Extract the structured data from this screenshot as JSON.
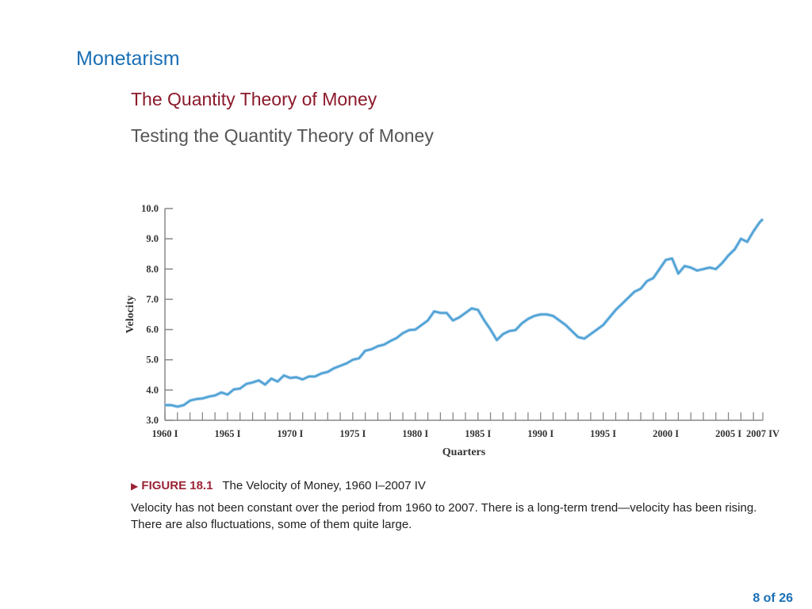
{
  "slide": {
    "section_title": "Monetarism",
    "subtitle": "The Quantity Theory of Money",
    "subsubtitle": "Testing the Quantity Theory of Money",
    "figure_marker": "▶",
    "figure_label": "FIGURE 18.1",
    "figure_title": "The Velocity of Money, 1960 I–2007 IV",
    "figure_description": "Velocity has not been constant over the period from 1960 to 2007. There is a long-term trend—velocity has been rising. There are also fluctuations, some of them quite large.",
    "page_number": "8 of 26"
  },
  "chart_data": {
    "type": "line",
    "title": "",
    "xlabel": "Quarters",
    "ylabel": "Velocity",
    "ylim": [
      3.0,
      10.0
    ],
    "xlim": [
      1960.0,
      2007.75
    ],
    "y_ticks": [
      "3.0",
      "4.0",
      "5.0",
      "6.0",
      "7.0",
      "8.0",
      "9.0",
      "10.0"
    ],
    "x_tick_labels": [
      {
        "x": 1960,
        "label": "1960 I"
      },
      {
        "x": 1965,
        "label": "1965 I"
      },
      {
        "x": 1970,
        "label": "1970 I"
      },
      {
        "x": 1975,
        "label": "1975 I"
      },
      {
        "x": 1980,
        "label": "1980 I"
      },
      {
        "x": 1985,
        "label": "1985 I"
      },
      {
        "x": 1990,
        "label": "1990 I"
      },
      {
        "x": 1995,
        "label": "1995 I"
      },
      {
        "x": 2000,
        "label": "2000 I"
      },
      {
        "x": 2005,
        "label": "2005 I"
      },
      {
        "x": 2007.75,
        "label": "2007 IV"
      }
    ],
    "line_color": "#4a9fd4",
    "series": [
      {
        "x": [
          1960.0,
          1960.5,
          1961.0,
          1961.5,
          1962.0,
          1962.5,
          1963.0,
          1963.5,
          1964.0,
          1964.5,
          1965.0,
          1965.5,
          1966.0,
          1966.5,
          1967.0,
          1967.5,
          1968.0,
          1968.5,
          1969.0,
          1969.5,
          1970.0,
          1970.5,
          1971.0,
          1971.5,
          1972.0,
          1972.5,
          1973.0,
          1973.5,
          1974.0,
          1974.5,
          1975.0,
          1975.5,
          1976.0,
          1976.5,
          1977.0,
          1977.5,
          1978.0,
          1978.5,
          1979.0,
          1979.5,
          1980.0,
          1980.5,
          1981.0,
          1981.5,
          1982.0,
          1982.5,
          1983.0,
          1983.5,
          1984.0,
          1984.5,
          1985.0,
          1985.5,
          1986.0,
          1986.5,
          1987.0,
          1987.5,
          1988.0,
          1988.5,
          1989.0,
          1989.5,
          1990.0,
          1990.5,
          1991.0,
          1991.5,
          1992.0,
          1992.5,
          1993.0,
          1993.5,
          1994.0,
          1994.5,
          1995.0,
          1995.5,
          1996.0,
          1996.5,
          1997.0,
          1997.5,
          1998.0,
          1998.5,
          1999.0,
          1999.5,
          2000.0,
          2000.5,
          2001.0,
          2001.5,
          2002.0,
          2002.5,
          2003.0,
          2003.5,
          2004.0,
          2004.5,
          2005.0,
          2005.5,
          2006.0,
          2006.5,
          2007.0,
          2007.5,
          2007.75
        ],
        "y": [
          3.5,
          3.5,
          3.45,
          3.5,
          3.65,
          3.7,
          3.72,
          3.78,
          3.82,
          3.92,
          3.85,
          4.02,
          4.05,
          4.2,
          4.25,
          4.32,
          4.18,
          4.38,
          4.28,
          4.48,
          4.4,
          4.42,
          4.35,
          4.45,
          4.45,
          4.55,
          4.6,
          4.72,
          4.8,
          4.88,
          5.0,
          5.05,
          5.3,
          5.35,
          5.45,
          5.5,
          5.62,
          5.72,
          5.88,
          5.98,
          6.0,
          6.15,
          6.3,
          6.6,
          6.55,
          6.55,
          6.3,
          6.4,
          6.55,
          6.7,
          6.65,
          6.3,
          6.0,
          5.65,
          5.85,
          5.95,
          5.98,
          6.2,
          6.35,
          6.45,
          6.5,
          6.5,
          6.45,
          6.3,
          6.15,
          5.95,
          5.75,
          5.7,
          5.85,
          6.0,
          6.15,
          6.4,
          6.65,
          6.85,
          7.05,
          7.25,
          7.35,
          7.6,
          7.7,
          8.0,
          8.3,
          8.35,
          7.85,
          8.1,
          8.05,
          7.95,
          8.0,
          8.05,
          8.0,
          8.2,
          8.45,
          8.65,
          9.0,
          8.9,
          9.25,
          9.55,
          9.65
        ]
      }
    ]
  }
}
